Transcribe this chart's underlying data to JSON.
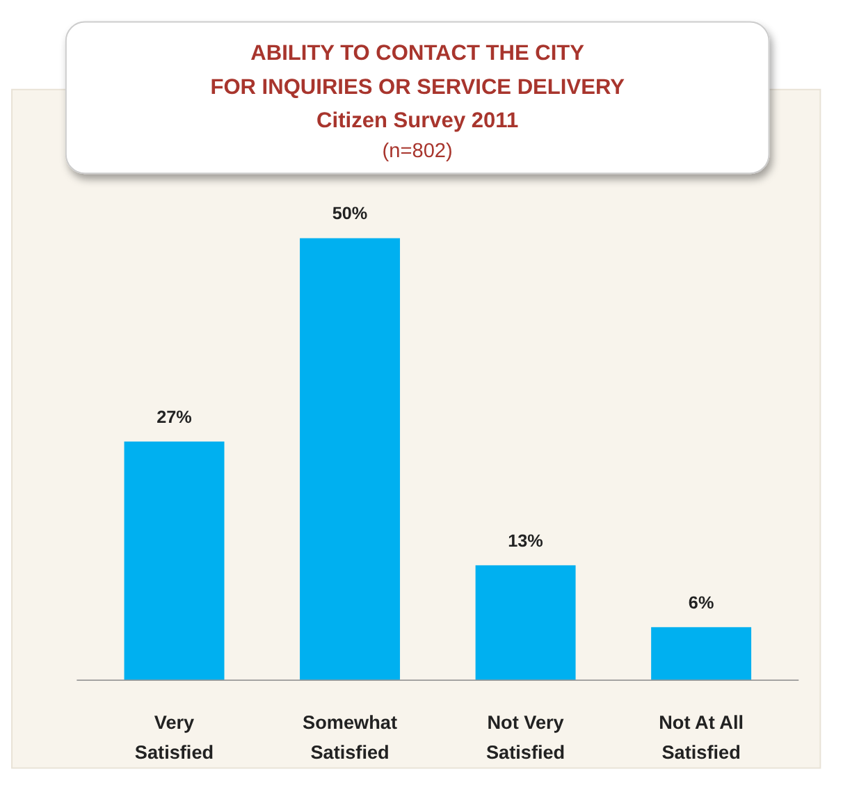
{
  "chart_data": {
    "type": "bar",
    "title": "ABILITY TO CONTACT THE CITY\nFOR INQUIRIES OR SERVICE DELIVERY\nCitizen Survey 2011",
    "subtitle": "(n=802)",
    "categories": [
      "Very Satisfied",
      "Somewhat Satisfied",
      "Not Very Satisfied",
      "Not At All Satisfied"
    ],
    "values": [
      27,
      50,
      13,
      6
    ],
    "value_labels": [
      "27%",
      "50%",
      "13%",
      "6%"
    ],
    "color": "#00b0f0"
  }
}
